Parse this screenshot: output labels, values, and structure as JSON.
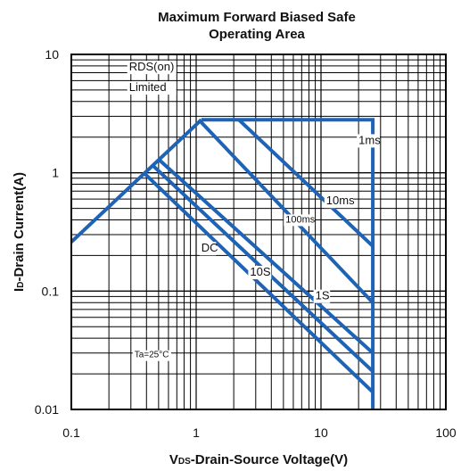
{
  "chart_data": {
    "type": "line",
    "title": "Maximum Forward Biased Safe Operating Area",
    "title_lines": [
      "Maximum Forward Biased Safe",
      "Operating Area"
    ],
    "xlabel": {
      "prefix": "V",
      "sub": "DS",
      "rest": "-Drain-Source Voltage(V)"
    },
    "ylabel": {
      "prefix": "I",
      "sub": "D",
      "rest": "-Drain Current(A)"
    },
    "xscale": "log",
    "yscale": "log",
    "xlim": [
      0.1,
      100
    ],
    "ylim": [
      0.01,
      10
    ],
    "xticks": [
      {
        "value": 0.1,
        "label": "0.1"
      },
      {
        "value": 1,
        "label": "1"
      },
      {
        "value": 10,
        "label": "10"
      },
      {
        "value": 100,
        "label": "100"
      }
    ],
    "yticks": [
      {
        "value": 0.01,
        "label": "0.01"
      },
      {
        "value": 0.1,
        "label": "0.1"
      },
      {
        "value": 1,
        "label": "1"
      },
      {
        "value": 10,
        "label": "10"
      }
    ],
    "grid": true,
    "line_color": "#1e63b5",
    "series": [
      {
        "name": "RDS(on) Limited",
        "points": [
          [
            0.1,
            0.26
          ],
          [
            1.1,
            2.8
          ]
        ]
      },
      {
        "name": "1ms",
        "points": [
          [
            1.1,
            2.8
          ],
          [
            26,
            2.8
          ],
          [
            26,
            0.01
          ]
        ]
      },
      {
        "name": "10ms",
        "points": [
          [
            2.2,
            2.8
          ],
          [
            26,
            0.24
          ]
        ]
      },
      {
        "name": "100ms",
        "points": [
          [
            1.05,
            2.8
          ],
          [
            26,
            0.08
          ]
        ]
      },
      {
        "name": "1S",
        "points": [
          [
            0.5,
            1.3
          ],
          [
            26,
            0.03
          ]
        ]
      },
      {
        "name": "10S",
        "points": [
          [
            0.45,
            1.15
          ],
          [
            26,
            0.021
          ]
        ]
      },
      {
        "name": "DC",
        "points": [
          [
            0.38,
            1.0
          ],
          [
            26,
            0.014
          ]
        ]
      }
    ],
    "annotations": [
      {
        "text": "RDS(on)",
        "x": 0.29,
        "y": 7.3,
        "size": "normal"
      },
      {
        "text": "Limited",
        "x": 0.29,
        "y": 4.9,
        "size": "normal"
      },
      {
        "text": "1ms",
        "x": 20,
        "y": 1.75,
        "size": "normal"
      },
      {
        "text": "10ms",
        "x": 11,
        "y": 0.54,
        "size": "normal"
      },
      {
        "text": "100ms",
        "x": 5.2,
        "y": 0.38,
        "size": "small"
      },
      {
        "text": "DC",
        "x": 1.1,
        "y": 0.215,
        "size": "normal"
      },
      {
        "text": "10S",
        "x": 2.7,
        "y": 0.135,
        "size": "normal"
      },
      {
        "text": "1S",
        "x": 9,
        "y": 0.085,
        "size": "normal"
      },
      {
        "text": "Ta=25°C",
        "x": 0.32,
        "y": 0.0275,
        "size": "tiny"
      }
    ]
  }
}
